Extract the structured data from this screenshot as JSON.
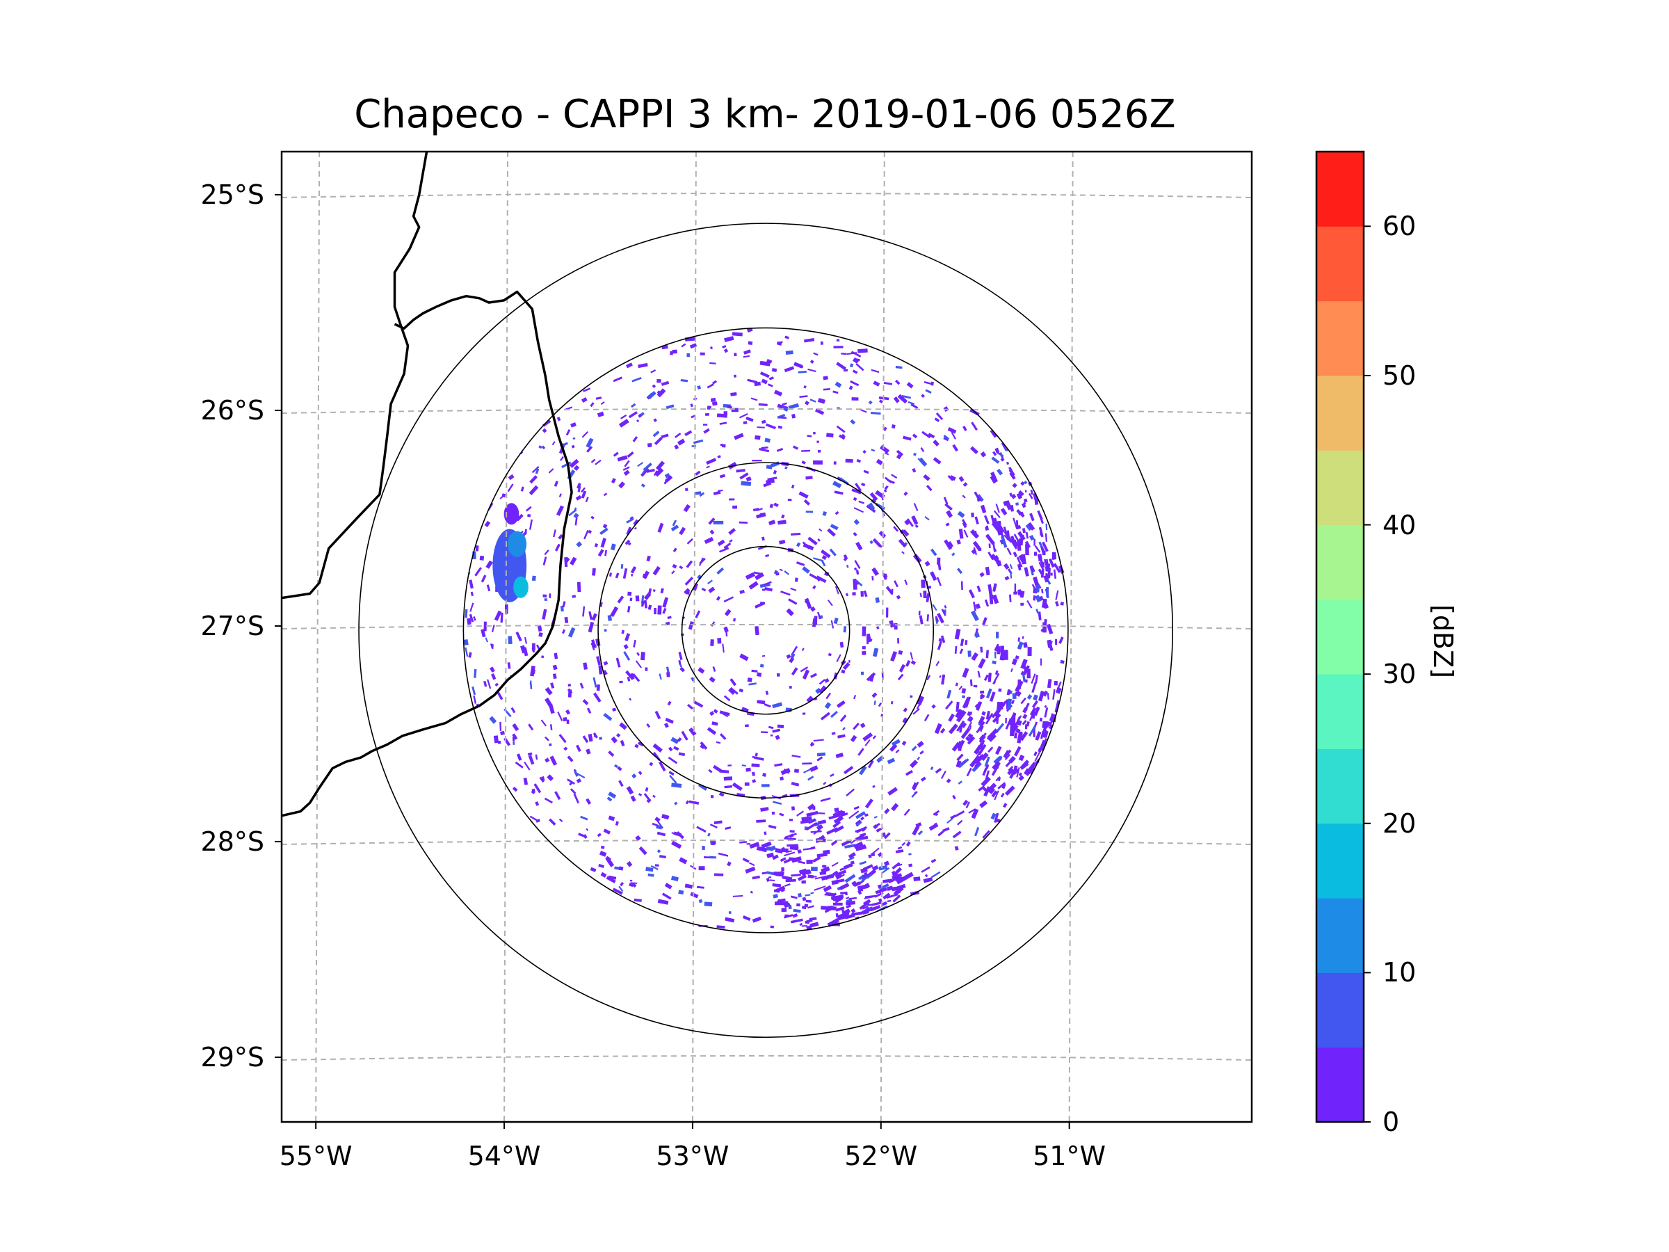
{
  "chart_data": {
    "type": "map-radar",
    "title": "Chapeco - CAPPI 3 km- 2019-01-06 0526Z",
    "xlim": [
      -55.2,
      -50.05
    ],
    "ylim": [
      -29.3,
      -24.8
    ],
    "x_ticks": [
      {
        "value": -55,
        "label": "55°W"
      },
      {
        "value": -54,
        "label": "54°W"
      },
      {
        "value": -53,
        "label": "53°W"
      },
      {
        "value": -52,
        "label": "52°W"
      },
      {
        "value": -51,
        "label": "51°W"
      }
    ],
    "y_ticks": [
      {
        "value": -25,
        "label": "25°S"
      },
      {
        "value": -26,
        "label": "26°S"
      },
      {
        "value": -27,
        "label": "27°S"
      },
      {
        "value": -28,
        "label": "28°S"
      },
      {
        "value": -29,
        "label": "29°S"
      }
    ],
    "radar_center": {
      "lon": -52.63,
      "lat": -27.02
    },
    "range_rings_deg": [
      0.445,
      0.89,
      1.605,
      2.16
    ],
    "colorbar": {
      "label": "[dBZ]",
      "min": 0,
      "max": 65,
      "ticks": [
        0,
        10,
        20,
        30,
        40,
        50,
        60
      ],
      "bins": [
        {
          "from": 0,
          "to": 5,
          "color": "#7123fb"
        },
        {
          "from": 5,
          "to": 10,
          "color": "#4257f0"
        },
        {
          "from": 10,
          "to": 15,
          "color": "#1e8ce6"
        },
        {
          "from": 15,
          "to": 20,
          "color": "#0abcdf"
        },
        {
          "from": 20,
          "to": 25,
          "color": "#30ddd0"
        },
        {
          "from": 25,
          "to": 30,
          "color": "#5af5c0"
        },
        {
          "from": 30,
          "to": 35,
          "color": "#82fda8"
        },
        {
          "from": 35,
          "to": 40,
          "color": "#a6f590"
        },
        {
          "from": 40,
          "to": 45,
          "color": "#cede7b"
        },
        {
          "from": 45,
          "to": 50,
          "color": "#f0bb69"
        },
        {
          "from": 50,
          "to": 55,
          "color": "#ff8c52"
        },
        {
          "from": 55,
          "to": 60,
          "color": "#ff5937"
        },
        {
          "from": 60,
          "to": 65,
          "color": "#ff1f18"
        }
      ]
    },
    "echo_cells": [
      {
        "lon": -53.99,
        "lat": -26.72,
        "rx": 0.09,
        "ry": 0.17,
        "dbz": 8
      },
      {
        "lon": -53.95,
        "lat": -26.62,
        "rx": 0.05,
        "ry": 0.06,
        "dbz": 14
      },
      {
        "lon": -53.93,
        "lat": -26.82,
        "rx": 0.04,
        "ry": 0.05,
        "dbz": 16
      },
      {
        "lon": -53.98,
        "lat": -26.48,
        "rx": 0.04,
        "ry": 0.05,
        "dbz": 4
      }
    ],
    "echo_regions": [
      {
        "lon": -52.25,
        "lat": -28.15,
        "radius": 0.35,
        "density": 1.6
      },
      {
        "lon": -51.3,
        "lat": -27.5,
        "radius": 0.35,
        "density": 1.5
      },
      {
        "lon": -51.1,
        "lat": -26.6,
        "radius": 0.35,
        "density": 1.3
      }
    ],
    "borders": [
      [
        [
          -54.43,
          -24.8
        ],
        [
          -54.47,
          -25.0
        ],
        [
          -54.5,
          -25.1
        ],
        [
          -54.47,
          -25.15
        ],
        [
          -54.52,
          -25.25
        ],
        [
          -54.6,
          -25.36
        ],
        [
          -54.6,
          -25.45
        ],
        [
          -54.6,
          -25.52
        ],
        [
          -54.57,
          -25.6
        ],
        [
          -54.53,
          -25.7
        ],
        [
          -54.55,
          -25.83
        ],
        [
          -54.62,
          -25.97
        ],
        [
          -54.64,
          -26.12
        ],
        [
          -54.66,
          -26.26
        ],
        [
          -54.68,
          -26.39
        ],
        [
          -54.8,
          -26.5
        ],
        [
          -54.95,
          -26.64
        ],
        [
          -55.0,
          -26.8
        ],
        [
          -55.05,
          -26.85
        ],
        [
          -55.2,
          -26.87
        ]
      ],
      [
        [
          -54.6,
          -25.6
        ],
        [
          -54.55,
          -25.62
        ],
        [
          -54.5,
          -25.58
        ],
        [
          -54.45,
          -25.55
        ],
        [
          -54.38,
          -25.52
        ],
        [
          -54.3,
          -25.49
        ],
        [
          -54.22,
          -25.47
        ],
        [
          -54.15,
          -25.48
        ],
        [
          -54.1,
          -25.5
        ],
        [
          -54.02,
          -25.49
        ],
        [
          -53.95,
          -25.45
        ],
        [
          -53.87,
          -25.53
        ],
        [
          -53.84,
          -25.68
        ],
        [
          -53.8,
          -25.84
        ],
        [
          -53.78,
          -25.95
        ],
        [
          -53.73,
          -26.12
        ],
        [
          -53.68,
          -26.25
        ],
        [
          -53.66,
          -26.38
        ],
        [
          -53.7,
          -26.55
        ],
        [
          -53.72,
          -26.72
        ],
        [
          -53.73,
          -26.88
        ],
        [
          -53.76,
          -27.0
        ],
        [
          -53.8,
          -27.08
        ],
        [
          -53.85,
          -27.13
        ],
        [
          -53.93,
          -27.2
        ],
        [
          -54.0,
          -27.25
        ],
        [
          -54.07,
          -27.32
        ],
        [
          -54.15,
          -27.37
        ],
        [
          -54.25,
          -27.41
        ],
        [
          -54.33,
          -27.45
        ],
        [
          -54.45,
          -27.48
        ],
        [
          -54.56,
          -27.51
        ],
        [
          -54.64,
          -27.55
        ],
        [
          -54.72,
          -27.58
        ],
        [
          -54.78,
          -27.61
        ],
        [
          -54.86,
          -27.63
        ],
        [
          -54.93,
          -27.66
        ],
        [
          -55.0,
          -27.75
        ],
        [
          -55.05,
          -27.82
        ],
        [
          -55.1,
          -27.86
        ],
        [
          -55.2,
          -27.88
        ]
      ]
    ]
  }
}
